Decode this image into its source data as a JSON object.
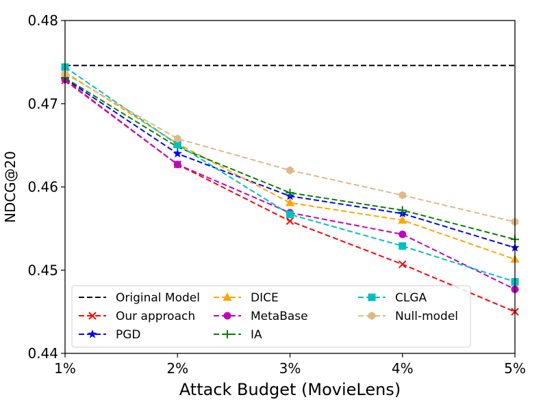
{
  "chart_data": {
    "type": "line",
    "xlabel": "Attack Budget (MovieLens)",
    "ylabel": "NDCG@20",
    "x_positions": [
      1,
      2,
      3,
      4,
      5
    ],
    "categories": [
      "1%",
      "2%",
      "3%",
      "4%",
      "5%"
    ],
    "ylim": [
      0.44,
      0.48
    ],
    "yticks": [
      0.44,
      0.45,
      0.46,
      0.47,
      0.48
    ],
    "ytick_labels": [
      "0.44",
      "0.45",
      "0.46",
      "0.47",
      "0.48"
    ],
    "grid": false,
    "legend_position": "bottom-center",
    "series": [
      {
        "name": "Original Model",
        "color": "#000000",
        "marker": "none",
        "values": [
          0.4746,
          0.4746,
          0.4746,
          0.4746,
          0.4746
        ]
      },
      {
        "name": "Our approach",
        "color": "#ff0000",
        "marker": "x",
        "values": [
          0.4728,
          0.4627,
          0.4559,
          0.4507,
          0.445
        ]
      },
      {
        "name": "PGD",
        "color": "#0000ff",
        "marker": "star",
        "values": [
          0.473,
          0.464,
          0.4589,
          0.4568,
          0.4527
        ]
      },
      {
        "name": "DICE",
        "color": "#ffa500",
        "marker": "triangle",
        "values": [
          0.4738,
          0.4652,
          0.4581,
          0.456,
          0.4513
        ]
      },
      {
        "name": "MetaBase",
        "color": "#c000c0",
        "marker": "circle",
        "values": [
          0.4729,
          0.4627,
          0.4569,
          0.4543,
          0.4477
        ]
      },
      {
        "name": "IA",
        "color": "#008000",
        "marker": "plus",
        "values": [
          0.4731,
          0.4648,
          0.4593,
          0.4572,
          0.4537
        ]
      },
      {
        "name": "CLGA",
        "color": "#00bfbf",
        "marker": "square",
        "values": [
          0.4744,
          0.4651,
          0.4567,
          0.4529,
          0.4486
        ]
      },
      {
        "name": "Null-model",
        "color": "#deb887",
        "marker": "hexagon",
        "values": [
          0.4736,
          0.4658,
          0.462,
          0.459,
          0.4558
        ]
      }
    ]
  }
}
